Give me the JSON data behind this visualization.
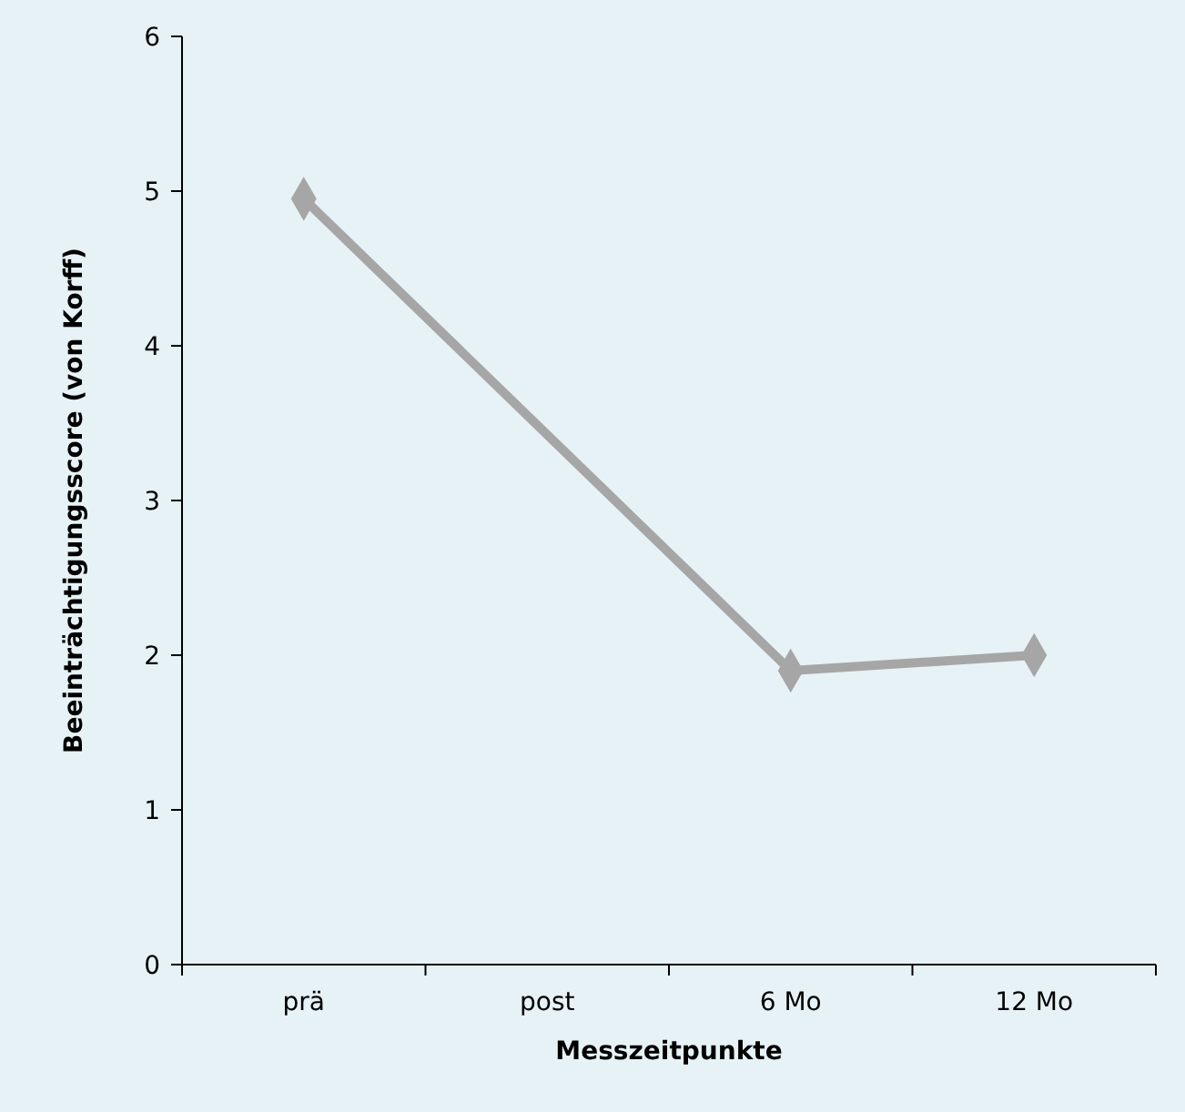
{
  "chart_data": {
    "type": "line",
    "xlabel": "Messzeitpunkte",
    "ylabel": "Beeinträchtigungsscore (von Korff)",
    "categories": [
      "prä",
      "post",
      "6 Mo",
      "12 Mo"
    ],
    "series": [
      {
        "color": "#a6a6a6",
        "values": [
          4.95,
          null,
          1.9,
          2.0
        ]
      }
    ],
    "ylim": [
      0,
      6
    ],
    "yticks": [
      0,
      1,
      2,
      3,
      4,
      5,
      6
    ],
    "grid": false,
    "marker": "diamond",
    "line_style": "solid"
  }
}
